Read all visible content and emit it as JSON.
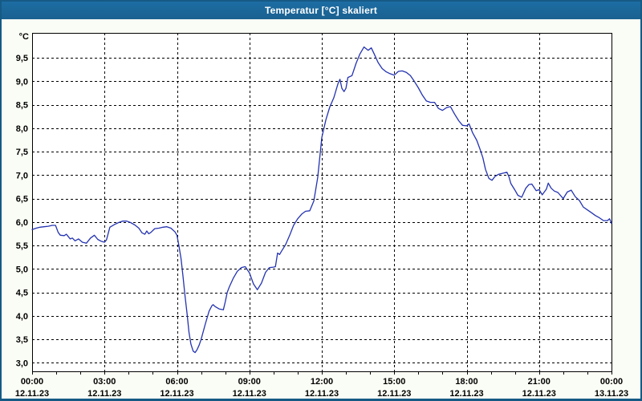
{
  "window": {
    "title": "Temperatur [°C] skaliert"
  },
  "colors": {
    "titlebar_bg": "#1d6da3",
    "titlebar_bg2": "#1a6190",
    "titlebar_text": "#ffffff",
    "window_border": "#155a85",
    "outer_bg": "#fafdf5",
    "plot_bg": "#ffffff",
    "grid": "#000000",
    "axis": "#000000",
    "label": "#000000",
    "line": "#2433b0"
  },
  "chart_data": {
    "type": "line",
    "title": "Temperatur [°C] skaliert",
    "y_axis_unit": "°C",
    "grid": "dashed",
    "legend": "none",
    "ylim": [
      2.82,
      10.03
    ],
    "xlim_hours": [
      0,
      24
    ],
    "minor_x_tick_every_hours": 1,
    "y_ticks": [
      {
        "value": 3.0,
        "label": "3,0"
      },
      {
        "value": 3.5,
        "label": "3,5"
      },
      {
        "value": 4.0,
        "label": "4,0"
      },
      {
        "value": 4.5,
        "label": "4,5"
      },
      {
        "value": 5.0,
        "label": "5,0"
      },
      {
        "value": 5.5,
        "label": "5,5"
      },
      {
        "value": 6.0,
        "label": "6,0"
      },
      {
        "value": 6.5,
        "label": "6,5"
      },
      {
        "value": 7.0,
        "label": "7,0"
      },
      {
        "value": 7.5,
        "label": "7,5"
      },
      {
        "value": 8.0,
        "label": "8,0"
      },
      {
        "value": 8.5,
        "label": "8,5"
      },
      {
        "value": 9.0,
        "label": "9,0"
      },
      {
        "value": 9.5,
        "label": "9,5"
      }
    ],
    "x_ticks": [
      {
        "hour": 0,
        "time": "00:00",
        "date": "12.11.23"
      },
      {
        "hour": 3,
        "time": "03:00",
        "date": "12.11.23"
      },
      {
        "hour": 6,
        "time": "06:00",
        "date": "12.11.23"
      },
      {
        "hour": 9,
        "time": "09:00",
        "date": "12.11.23"
      },
      {
        "hour": 12,
        "time": "12:00",
        "date": "12.11.23"
      },
      {
        "hour": 15,
        "time": "15:00",
        "date": "12.11.23"
      },
      {
        "hour": 18,
        "time": "18:00",
        "date": "12.11.23"
      },
      {
        "hour": 21,
        "time": "21:00",
        "date": "12.11.23"
      },
      {
        "hour": 24,
        "time": "00:00",
        "date": "13.11.23"
      }
    ],
    "series": [
      {
        "name": "Temperatur",
        "points": [
          [
            0.0,
            5.84
          ],
          [
            0.17,
            5.87
          ],
          [
            0.33,
            5.89
          ],
          [
            0.5,
            5.9
          ],
          [
            0.67,
            5.91
          ],
          [
            0.83,
            5.93
          ],
          [
            0.97,
            5.93
          ],
          [
            1.08,
            5.78
          ],
          [
            1.17,
            5.72
          ],
          [
            1.33,
            5.71
          ],
          [
            1.42,
            5.74
          ],
          [
            1.58,
            5.64
          ],
          [
            1.67,
            5.66
          ],
          [
            1.78,
            5.6
          ],
          [
            1.92,
            5.64
          ],
          [
            2.08,
            5.57
          ],
          [
            2.25,
            5.55
          ],
          [
            2.42,
            5.66
          ],
          [
            2.58,
            5.72
          ],
          [
            2.72,
            5.63
          ],
          [
            2.87,
            5.59
          ],
          [
            3.0,
            5.57
          ],
          [
            3.08,
            5.62
          ],
          [
            3.22,
            5.89
          ],
          [
            3.42,
            5.95
          ],
          [
            3.58,
            5.99
          ],
          [
            3.75,
            6.02
          ],
          [
            3.92,
            6.02
          ],
          [
            4.08,
            5.99
          ],
          [
            4.25,
            5.94
          ],
          [
            4.42,
            5.87
          ],
          [
            4.55,
            5.77
          ],
          [
            4.67,
            5.74
          ],
          [
            4.75,
            5.81
          ],
          [
            4.83,
            5.75
          ],
          [
            4.92,
            5.78
          ],
          [
            5.08,
            5.86
          ],
          [
            5.25,
            5.87
          ],
          [
            5.42,
            5.89
          ],
          [
            5.58,
            5.9
          ],
          [
            5.75,
            5.87
          ],
          [
            5.92,
            5.79
          ],
          [
            6.0,
            5.72
          ],
          [
            6.08,
            5.5
          ],
          [
            6.17,
            5.22
          ],
          [
            6.25,
            4.85
          ],
          [
            6.33,
            4.45
          ],
          [
            6.42,
            4.05
          ],
          [
            6.5,
            3.65
          ],
          [
            6.58,
            3.4
          ],
          [
            6.67,
            3.25
          ],
          [
            6.75,
            3.22
          ],
          [
            6.83,
            3.28
          ],
          [
            6.92,
            3.38
          ],
          [
            7.0,
            3.5
          ],
          [
            7.17,
            3.82
          ],
          [
            7.33,
            4.1
          ],
          [
            7.45,
            4.22
          ],
          [
            7.5,
            4.24
          ],
          [
            7.58,
            4.2
          ],
          [
            7.75,
            4.15
          ],
          [
            7.92,
            4.13
          ],
          [
            8.0,
            4.3
          ],
          [
            8.08,
            4.5
          ],
          [
            8.17,
            4.62
          ],
          [
            8.33,
            4.8
          ],
          [
            8.5,
            4.95
          ],
          [
            8.67,
            5.03
          ],
          [
            8.83,
            5.05
          ],
          [
            9.0,
            4.92
          ],
          [
            9.17,
            4.68
          ],
          [
            9.33,
            4.56
          ],
          [
            9.5,
            4.7
          ],
          [
            9.67,
            4.93
          ],
          [
            9.83,
            5.03
          ],
          [
            10.0,
            5.04
          ],
          [
            10.08,
            5.05
          ],
          [
            10.17,
            5.34
          ],
          [
            10.25,
            5.31
          ],
          [
            10.33,
            5.38
          ],
          [
            10.5,
            5.52
          ],
          [
            10.67,
            5.72
          ],
          [
            10.83,
            5.93
          ],
          [
            11.0,
            6.07
          ],
          [
            11.17,
            6.17
          ],
          [
            11.33,
            6.23
          ],
          [
            11.5,
            6.24
          ],
          [
            11.67,
            6.45
          ],
          [
            11.83,
            6.95
          ],
          [
            12.0,
            7.8
          ],
          [
            12.17,
            8.18
          ],
          [
            12.33,
            8.45
          ],
          [
            12.5,
            8.65
          ],
          [
            12.67,
            8.95
          ],
          [
            12.75,
            9.04
          ],
          [
            12.83,
            8.85
          ],
          [
            12.92,
            8.78
          ],
          [
            13.0,
            8.85
          ],
          [
            13.08,
            9.08
          ],
          [
            13.25,
            9.12
          ],
          [
            13.42,
            9.38
          ],
          [
            13.58,
            9.58
          ],
          [
            13.75,
            9.73
          ],
          [
            13.92,
            9.66
          ],
          [
            14.05,
            9.71
          ],
          [
            14.17,
            9.58
          ],
          [
            14.33,
            9.4
          ],
          [
            14.5,
            9.27
          ],
          [
            14.67,
            9.2
          ],
          [
            14.83,
            9.16
          ],
          [
            15.0,
            9.13
          ],
          [
            15.17,
            9.21
          ],
          [
            15.33,
            9.22
          ],
          [
            15.5,
            9.19
          ],
          [
            15.67,
            9.12
          ],
          [
            15.83,
            9.0
          ],
          [
            16.0,
            8.86
          ],
          [
            16.17,
            8.7
          ],
          [
            16.33,
            8.58
          ],
          [
            16.5,
            8.55
          ],
          [
            16.67,
            8.55
          ],
          [
            16.83,
            8.42
          ],
          [
            17.0,
            8.38
          ],
          [
            17.17,
            8.44
          ],
          [
            17.33,
            8.46
          ],
          [
            17.5,
            8.3
          ],
          [
            17.67,
            8.16
          ],
          [
            17.83,
            8.06
          ],
          [
            18.0,
            8.05
          ],
          [
            18.1,
            8.09
          ],
          [
            18.25,
            7.9
          ],
          [
            18.42,
            7.74
          ],
          [
            18.55,
            7.56
          ],
          [
            18.67,
            7.37
          ],
          [
            18.78,
            7.12
          ],
          [
            18.92,
            6.93
          ],
          [
            19.05,
            6.89
          ],
          [
            19.17,
            6.97
          ],
          [
            19.33,
            7.02
          ],
          [
            19.5,
            7.04
          ],
          [
            19.67,
            7.06
          ],
          [
            19.75,
            6.97
          ],
          [
            19.83,
            6.82
          ],
          [
            20.0,
            6.68
          ],
          [
            20.12,
            6.57
          ],
          [
            20.28,
            6.53
          ],
          [
            20.45,
            6.72
          ],
          [
            20.58,
            6.8
          ],
          [
            20.7,
            6.81
          ],
          [
            20.88,
            6.67
          ],
          [
            21.0,
            6.69
          ],
          [
            21.13,
            6.58
          ],
          [
            21.3,
            6.7
          ],
          [
            21.38,
            6.83
          ],
          [
            21.5,
            6.72
          ],
          [
            21.63,
            6.66
          ],
          [
            21.78,
            6.63
          ],
          [
            22.0,
            6.5
          ],
          [
            22.17,
            6.64
          ],
          [
            22.33,
            6.68
          ],
          [
            22.5,
            6.54
          ],
          [
            22.67,
            6.46
          ],
          [
            22.83,
            6.32
          ],
          [
            23.0,
            6.26
          ],
          [
            23.17,
            6.2
          ],
          [
            23.33,
            6.14
          ],
          [
            23.5,
            6.09
          ],
          [
            23.67,
            6.03
          ],
          [
            23.83,
            6.03
          ],
          [
            23.92,
            6.07
          ],
          [
            24.0,
            5.97
          ]
        ]
      }
    ]
  }
}
